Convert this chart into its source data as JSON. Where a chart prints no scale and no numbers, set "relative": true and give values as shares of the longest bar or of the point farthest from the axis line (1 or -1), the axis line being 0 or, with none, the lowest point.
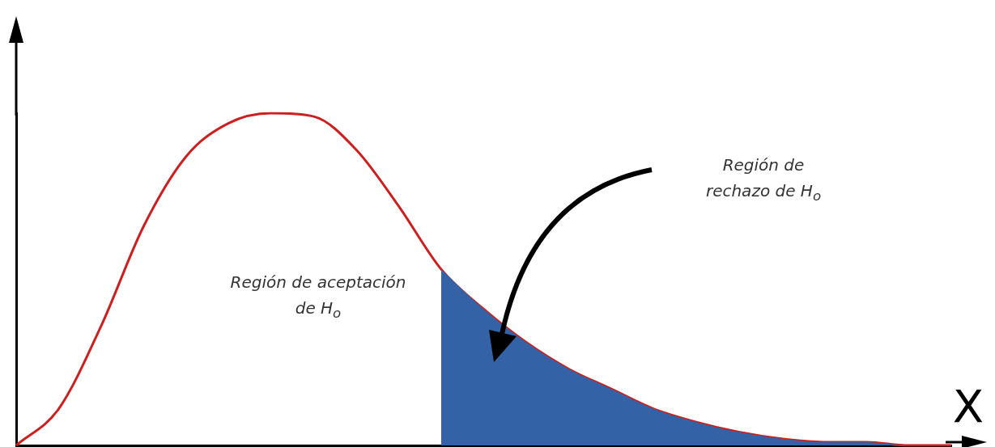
{
  "chart_data": {
    "type": "line",
    "relative": true,
    "xlabel": "X",
    "legend": false,
    "grid": false,
    "marker": "none",
    "categories": [
      null,
      null,
      null,
      null,
      null,
      null,
      null,
      null,
      null,
      null,
      null,
      null,
      null,
      null,
      null,
      null,
      null,
      null,
      null,
      null,
      null,
      null,
      null
    ],
    "series": [
      {
        "type": "area",
        "color": "#3462a6",
        "values": [
          null,
          null,
          null,
          null,
          null,
          null,
          null,
          null,
          null,
          null,
          0.53,
          0.41,
          0.31,
          0.23,
          0.17,
          0.11,
          0.07,
          0.04,
          0.02,
          0.01,
          0.01,
          0,
          0
        ]
      },
      {
        "type": "line",
        "color": "#cc1f1f",
        "values": [
          0,
          0.11,
          0.36,
          0.66,
          0.87,
          0.97,
          1,
          0.99,
          0.89,
          0.72,
          0.53,
          0.41,
          0.31,
          0.23,
          0.17,
          0.11,
          0.07,
          0.04,
          0.02,
          0.01,
          0.01,
          0,
          0
        ]
      }
    ],
    "annotations": [
      "Región de aceptación de H$_{o}$",
      "Región de rechazo de H$_{o}$"
    ]
  }
}
